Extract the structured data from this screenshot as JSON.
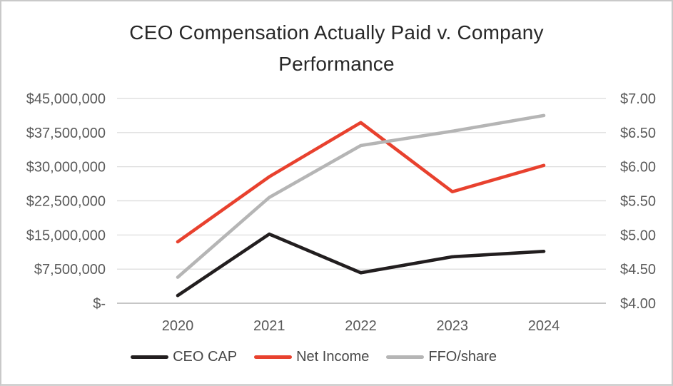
{
  "chart_data": {
    "type": "line",
    "title": "CEO Compensation Actually Paid v. Company Performance",
    "title_lines": [
      "CEO Compensation Actually Paid v. Company",
      "Performance"
    ],
    "categories": [
      "2020",
      "2021",
      "2022",
      "2023",
      "2024"
    ],
    "series": [
      {
        "name": "CEO CAP",
        "axis": "left",
        "color": "#221e1f",
        "values": [
          1700000,
          15200000,
          6700000,
          10200000,
          11400000
        ]
      },
      {
        "name": "Net Income",
        "axis": "left",
        "color": "#e8412e",
        "values": [
          13500000,
          27800000,
          39700000,
          24500000,
          30300000
        ]
      },
      {
        "name": "FFO/share",
        "axis": "right",
        "color": "#b5b5b5",
        "values": [
          4.38,
          5.55,
          6.31,
          6.52,
          6.75
        ]
      }
    ],
    "left_axis": {
      "min": 0,
      "max": 45000000,
      "tick_labels": [
        "$-",
        "$7,500,000",
        "$15,000,000",
        "$22,500,000",
        "$30,000,000",
        "$37,500,000",
        "$45,000,000"
      ]
    },
    "right_axis": {
      "min": 4,
      "max": 7,
      "tick_labels": [
        "$4.00",
        "$4.50",
        "$5.00",
        "$5.50",
        "$6.00",
        "$6.50",
        "$7.00"
      ]
    },
    "grid": true,
    "legend_position": "bottom",
    "colors": {
      "gridline": "#d9d9d9",
      "axis_line": "#b3b3b3",
      "tick_label": "#595959"
    }
  }
}
